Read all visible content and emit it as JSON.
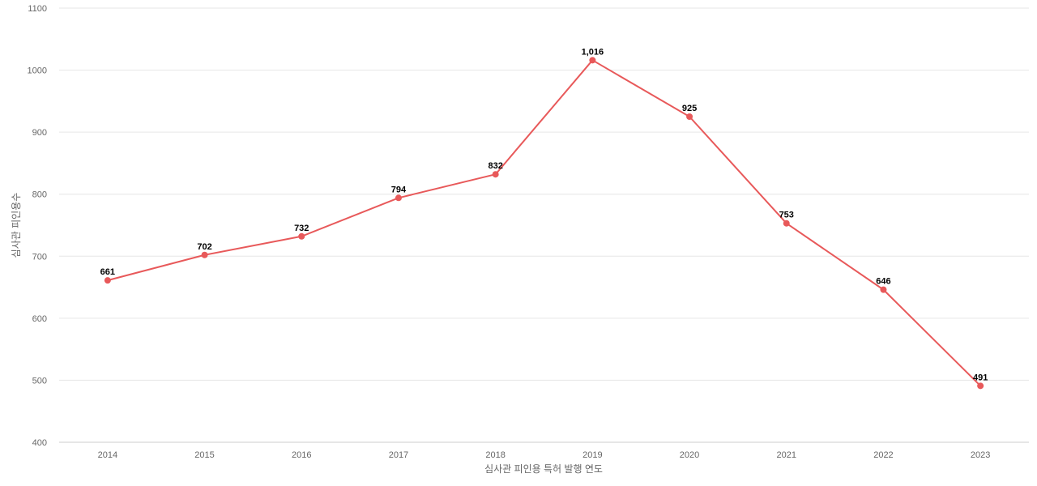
{
  "chart_data": {
    "type": "line",
    "categories": [
      "2014",
      "2015",
      "2016",
      "2017",
      "2018",
      "2019",
      "2020",
      "2021",
      "2022",
      "2023"
    ],
    "series": [
      {
        "values": [
          661,
          702,
          732,
          794,
          832,
          1016,
          925,
          753,
          646,
          491
        ],
        "data_labels": [
          "661",
          "702",
          "732",
          "794",
          "832",
          "1,016",
          "925",
          "753",
          "646",
          "491"
        ],
        "color": "#e8595a"
      }
    ],
    "xlabel": "심사관 피인용 특허 발행 연도",
    "ylabel": "심사관 피인용수",
    "ylim": [
      400,
      1100
    ],
    "yticks": [
      "400",
      "500",
      "600",
      "700",
      "800",
      "900",
      "1000",
      "1100"
    ],
    "grid": true,
    "legend": "none"
  }
}
